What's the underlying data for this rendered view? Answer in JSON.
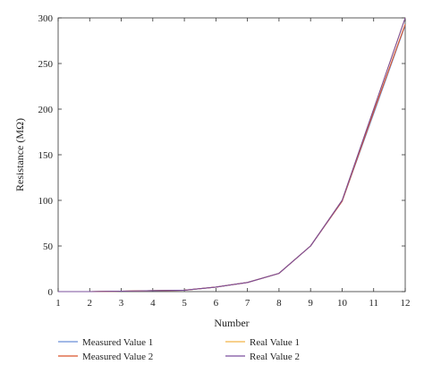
{
  "chart_data": {
    "type": "line",
    "title": "",
    "xlabel": "Number",
    "ylabel": "Resistance (MΩ)",
    "xlim": [
      1,
      12
    ],
    "ylim": [
      0,
      300
    ],
    "x_ticks": [
      1,
      2,
      3,
      4,
      5,
      6,
      7,
      8,
      9,
      10,
      11,
      12
    ],
    "y_ticks": [
      0,
      50,
      100,
      150,
      200,
      250,
      300
    ],
    "grid": false,
    "legend_position": "bottom",
    "x": [
      1,
      2,
      3,
      4,
      5,
      6,
      7,
      8,
      9,
      10,
      11,
      12
    ],
    "series": [
      {
        "name": "Measured Value 1",
        "color": "#6a8fd8",
        "values": [
          0,
          0,
          0.5,
          1,
          1.5,
          5,
          10,
          20,
          50,
          99,
          195,
          292
        ]
      },
      {
        "name": "Real Value 1",
        "color": "#f2b548",
        "values": [
          0,
          0,
          0.5,
          1,
          1.5,
          5,
          10,
          20,
          50,
          100,
          200,
          300
        ]
      },
      {
        "name": "Measured Value 2",
        "color": "#d9552b",
        "values": [
          0,
          0,
          0.5,
          1,
          1.5,
          5,
          10,
          20,
          50,
          99,
          197,
          293
        ]
      },
      {
        "name": "Real Value 2",
        "color": "#7b4f9e",
        "values": [
          0,
          0,
          0.5,
          1,
          1.5,
          5,
          10,
          20,
          50,
          100,
          200,
          300
        ]
      }
    ]
  }
}
